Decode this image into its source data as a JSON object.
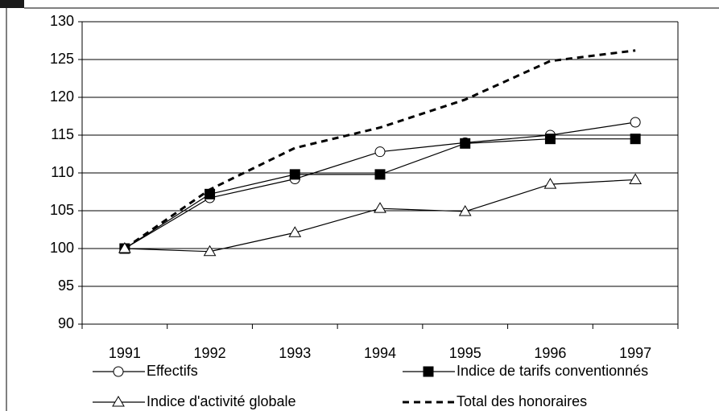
{
  "chart_data": {
    "type": "line",
    "categories": [
      "1991",
      "1992",
      "1993",
      "1994",
      "1995",
      "1996",
      "1997"
    ],
    "series": [
      {
        "name": "Effectifs",
        "color": "#000000",
        "marker": "circle",
        "values": [
          100,
          106.7,
          109.2,
          112.8,
          114.0,
          115.0,
          116.7
        ]
      },
      {
        "name": "Indice de tarifs conventionnés",
        "color": "#000000",
        "marker": "square",
        "values": [
          100,
          107.2,
          109.8,
          109.8,
          113.9,
          114.5,
          114.5
        ]
      },
      {
        "name": "Indice d'activité globale",
        "color": "#000000",
        "marker": "triangle",
        "values": [
          100,
          99.6,
          102.1,
          105.3,
          104.9,
          108.5,
          109.1
        ]
      },
      {
        "name": "Total des honoraires",
        "color": "#000000",
        "marker": "none",
        "dashed": true,
        "values": [
          100,
          107.8,
          113.3,
          116.0,
          119.7,
          124.8,
          126.2
        ]
      }
    ],
    "ylim": [
      90,
      130
    ],
    "yticks": [
      90,
      95,
      100,
      105,
      110,
      115,
      120,
      125,
      130
    ],
    "grid": true,
    "legend": "bottom"
  }
}
